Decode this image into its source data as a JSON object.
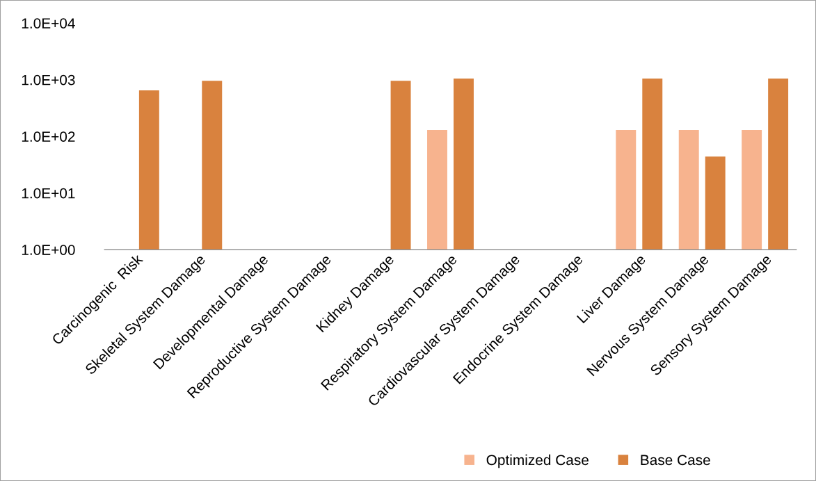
{
  "chart_data": {
    "type": "bar",
    "categories": [
      "Carcinogenic  Risk",
      "Skeletal System Damage",
      "Developmental Damage",
      "Reproductive System Damage",
      "Kidney Damage",
      "Respiratory System Damage",
      "Cardiovascular System Damage",
      "Endocrine System Damage",
      "Liver Damage",
      "Nervous System Damage",
      "Sensory System Damage"
    ],
    "series": [
      {
        "name": "Optimized Case",
        "color": "#f7b38e",
        "values": [
          null,
          null,
          null,
          null,
          null,
          130,
          null,
          null,
          130,
          130,
          130
        ]
      },
      {
        "name": "Base Case",
        "color": "#d9823e",
        "values": [
          650,
          960,
          null,
          null,
          960,
          1050,
          null,
          null,
          1050,
          44,
          1050
        ]
      }
    ],
    "log": "y",
    "ylim": [
      1,
      10000
    ],
    "yticks": [
      {
        "value": 1,
        "label": "1.0E+00"
      },
      {
        "value": 10,
        "label": "1.0E+01"
      },
      {
        "value": 100,
        "label": "1.0E+02"
      },
      {
        "value": 1000,
        "label": "1.0E+03"
      },
      {
        "value": 10000,
        "label": "1.0E+04"
      }
    ],
    "grid": false,
    "legend": "bottom"
  }
}
